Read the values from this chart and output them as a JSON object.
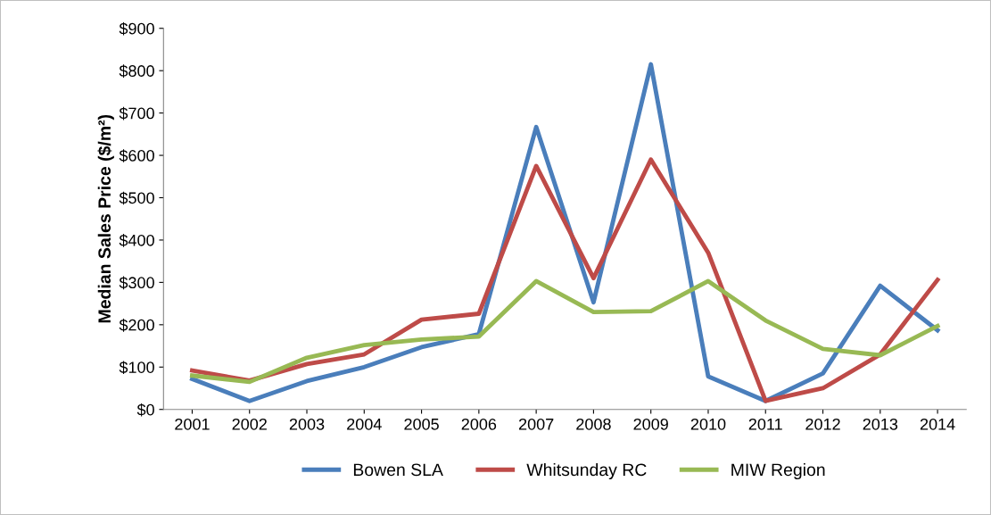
{
  "chart_data": {
    "type": "line",
    "ylabel": "Median Sales Price ($/m²)",
    "categories": [
      "2001",
      "2002",
      "2003",
      "2004",
      "2005",
      "2006",
      "2007",
      "2008",
      "2009",
      "2010",
      "2011",
      "2012",
      "2013",
      "2014"
    ],
    "series": [
      {
        "name": "Bowen SLA",
        "color": "#4a7ebb",
        "values": [
          72,
          20,
          67,
          100,
          147,
          178,
          667,
          253,
          815,
          78,
          20,
          85,
          292,
          187
        ]
      },
      {
        "name": "Whitsunday RC",
        "color": "#be4b48",
        "values": [
          92,
          68,
          107,
          130,
          212,
          226,
          575,
          310,
          590,
          370,
          20,
          50,
          130,
          306
        ]
      },
      {
        "name": "MIW Region",
        "color": "#98b954",
        "values": [
          80,
          65,
          122,
          152,
          165,
          172,
          303,
          230,
          232,
          303,
          210,
          143,
          128,
          197
        ]
      }
    ],
    "ylim": [
      0,
      900
    ],
    "yticks": [
      {
        "value": 0,
        "label": "$0"
      },
      {
        "value": 100,
        "label": "$100"
      },
      {
        "value": 200,
        "label": "$200"
      },
      {
        "value": 300,
        "label": "$300"
      },
      {
        "value": 400,
        "label": "$400"
      },
      {
        "value": 500,
        "label": "$500"
      },
      {
        "value": 600,
        "label": "$600"
      },
      {
        "value": 700,
        "label": "$700"
      },
      {
        "value": 800,
        "label": "$800"
      },
      {
        "value": 900,
        "label": "$900"
      }
    ],
    "grid": false,
    "legend": "bottom",
    "marker": "none",
    "line_style": "solid"
  }
}
